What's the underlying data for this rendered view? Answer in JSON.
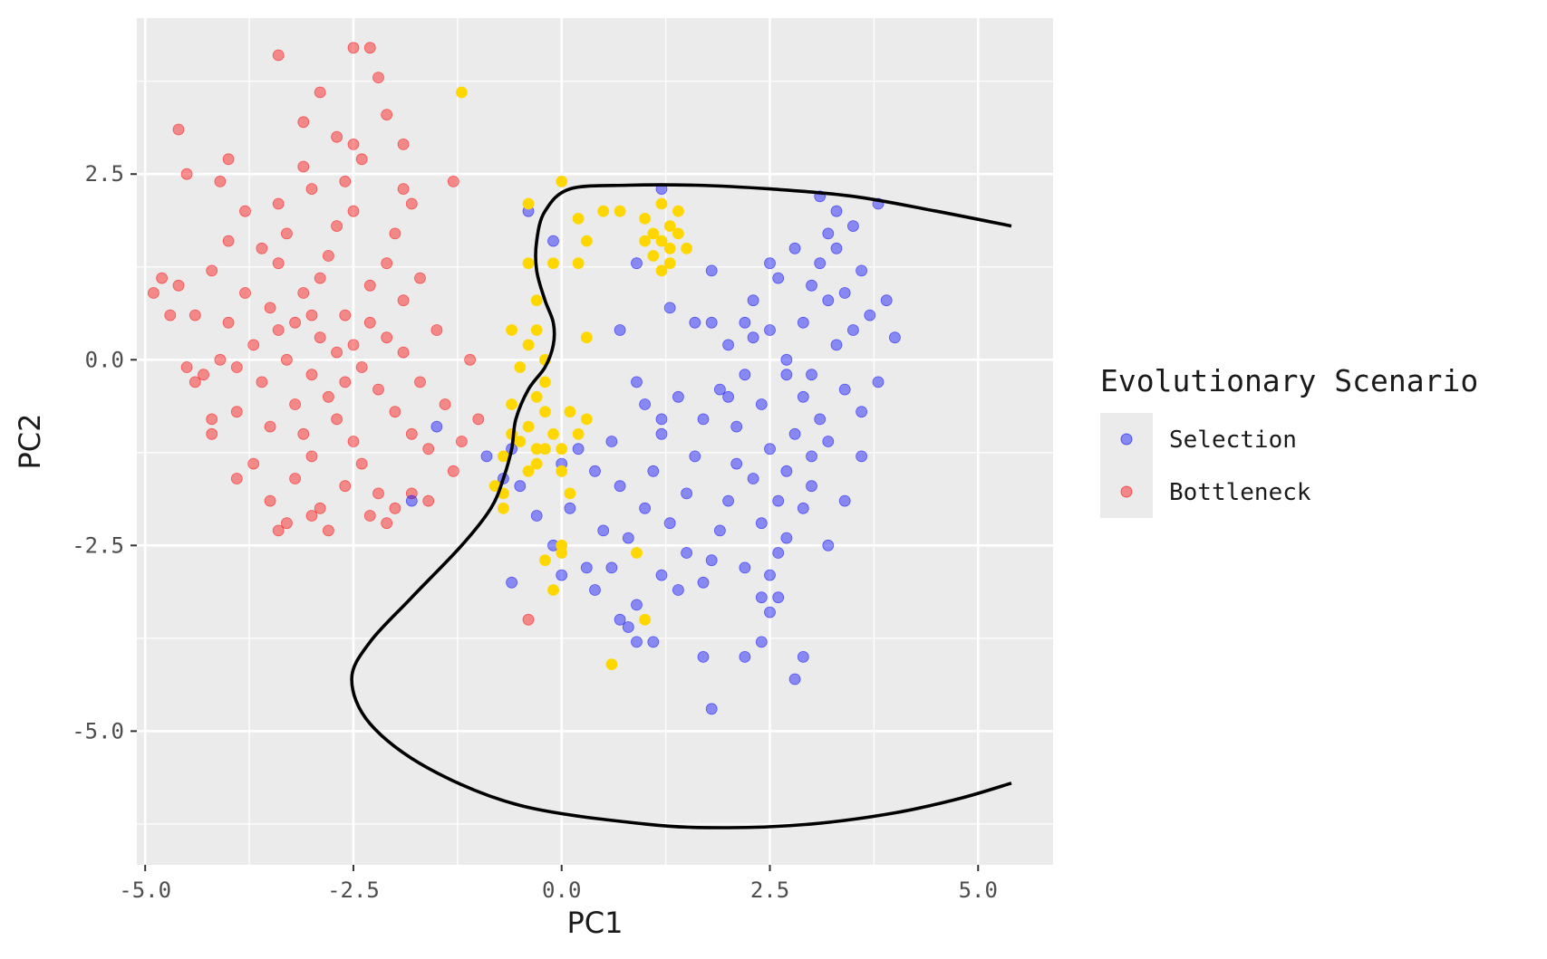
{
  "chart_data": {
    "type": "scatter",
    "xlabel": "PC1",
    "ylabel": "PC2",
    "xlim": [
      -5.1,
      5.9
    ],
    "ylim": [
      -6.8,
      4.6
    ],
    "x_ticks": [
      -5.0,
      -2.5,
      0.0,
      2.5,
      5.0
    ],
    "x_tick_labels": [
      "-5.0",
      "-2.5",
      "0.0",
      "2.5",
      "5.0"
    ],
    "y_ticks": [
      -5.0,
      -2.5,
      0.0,
      2.5
    ],
    "y_tick_labels": [
      "-5.0",
      "-2.5",
      "0.0",
      "2.5"
    ],
    "grid": true,
    "legend_position": "right",
    "legend": {
      "title": "Evolutionary Scenario",
      "entries": [
        {
          "label": "Selection",
          "color": "#0000ff"
        },
        {
          "label": "Bottleneck",
          "color": "#ff0000"
        }
      ]
    },
    "colors": {
      "panel_background": "#ebebeb",
      "grid": "#ffffff",
      "selection": "#0000ff",
      "bottleneck": "#ff0000",
      "unlabeled": "#ffd700",
      "boundary": "#000000"
    },
    "series": [
      {
        "color": "#ff0000",
        "points": [
          [
            -2.9,
            0.3
          ],
          [
            -3.2,
            0.5
          ],
          [
            -2.7,
            0.1
          ],
          [
            -3.0,
            -0.2
          ],
          [
            -3.4,
            0.4
          ],
          [
            -2.6,
            0.6
          ],
          [
            -3.1,
            0.9
          ],
          [
            -2.8,
            -0.5
          ],
          [
            -3.3,
            0.0
          ],
          [
            -2.5,
            0.2
          ],
          [
            -3.5,
            0.7
          ],
          [
            -2.9,
            1.1
          ],
          [
            -3.6,
            -0.3
          ],
          [
            -2.4,
            -0.1
          ],
          [
            -3.0,
            0.6
          ],
          [
            -2.7,
            -0.8
          ],
          [
            -3.2,
            -0.6
          ],
          [
            -2.3,
            0.5
          ],
          [
            -3.7,
            0.2
          ],
          [
            -2.6,
            -0.3
          ],
          [
            -3.8,
            0.9
          ],
          [
            -2.2,
            -0.4
          ],
          [
            -3.9,
            -0.1
          ],
          [
            -2.1,
            0.3
          ],
          [
            -3.4,
            1.3
          ],
          [
            -2.8,
            1.4
          ],
          [
            -3.1,
            -1.0
          ],
          [
            -2.5,
            -1.1
          ],
          [
            -4.0,
            0.5
          ],
          [
            -2.0,
            -0.7
          ],
          [
            -3.5,
            -0.9
          ],
          [
            -2.3,
            1.0
          ],
          [
            -3.3,
            1.7
          ],
          [
            -2.7,
            1.8
          ],
          [
            -4.1,
            0.0
          ],
          [
            -1.9,
            0.1
          ],
          [
            -3.0,
            -1.3
          ],
          [
            -2.4,
            -1.4
          ],
          [
            -3.6,
            1.5
          ],
          [
            -2.1,
            1.3
          ],
          [
            -4.2,
            1.2
          ],
          [
            -1.8,
            -1.0
          ],
          [
            -3.2,
            -1.6
          ],
          [
            -2.6,
            -1.7
          ],
          [
            -3.9,
            -0.7
          ],
          [
            -1.9,
            0.8
          ],
          [
            -4.3,
            -0.2
          ],
          [
            -1.7,
            -0.3
          ],
          [
            -3.4,
            2.1
          ],
          [
            -2.5,
            2.0
          ],
          [
            -4.0,
            1.6
          ],
          [
            -2.2,
            -1.8
          ],
          [
            -3.7,
            -1.4
          ],
          [
            -1.6,
            -1.2
          ],
          [
            -4.4,
            0.6
          ],
          [
            -1.5,
            0.4
          ],
          [
            -3.0,
            2.3
          ],
          [
            -2.9,
            -2.0
          ],
          [
            -4.5,
            -0.1
          ],
          [
            -1.4,
            -0.6
          ],
          [
            -3.8,
            2.0
          ],
          [
            -2.0,
            1.7
          ],
          [
            -4.2,
            -1.0
          ],
          [
            -1.7,
            1.1
          ],
          [
            -3.5,
            -1.9
          ],
          [
            -2.3,
            -2.1
          ],
          [
            -4.6,
            1.0
          ],
          [
            -1.3,
            -1.5
          ],
          [
            -4.7,
            0.6
          ],
          [
            -1.6,
            -1.9
          ],
          [
            -3.1,
            2.6
          ],
          [
            -2.6,
            2.4
          ],
          [
            -3.9,
            -1.6
          ],
          [
            -2.1,
            -2.2
          ],
          [
            -4.1,
            2.4
          ],
          [
            -1.8,
            2.1
          ],
          [
            -4.8,
            1.1
          ],
          [
            -1.2,
            -1.1
          ],
          [
            -3.3,
            -2.2
          ],
          [
            -2.4,
            2.7
          ],
          [
            -4.0,
            2.7
          ],
          [
            -1.9,
            2.3
          ],
          [
            -4.9,
            0.9
          ],
          [
            -1.1,
            0.0
          ],
          [
            -2.9,
            3.6
          ],
          [
            -2.5,
            4.2
          ],
          [
            -2.3,
            4.2
          ],
          [
            -3.4,
            4.1
          ],
          [
            -2.2,
            3.8
          ],
          [
            -3.1,
            3.2
          ],
          [
            -2.1,
            3.3
          ],
          [
            -4.6,
            3.1
          ],
          [
            -2.7,
            3.0
          ],
          [
            -2.5,
            2.9
          ],
          [
            -1.9,
            2.9
          ],
          [
            -1.3,
            2.4
          ],
          [
            -4.5,
            2.5
          ],
          [
            -2.8,
            -2.3
          ],
          [
            -3.0,
            -2.1
          ],
          [
            -3.4,
            -2.3
          ],
          [
            -2.0,
            -2.0
          ],
          [
            -1.8,
            -1.8
          ],
          [
            -4.2,
            -0.8
          ],
          [
            -4.4,
            -0.3
          ],
          [
            -0.4,
            -3.5
          ],
          [
            -1.0,
            -0.8
          ]
        ]
      },
      {
        "color": "#0000ff",
        "points": [
          [
            3.0,
            1.0
          ],
          [
            3.2,
            0.8
          ],
          [
            2.9,
            0.5
          ],
          [
            3.1,
            1.3
          ],
          [
            3.3,
            0.2
          ],
          [
            2.8,
            1.5
          ],
          [
            3.0,
            -0.2
          ],
          [
            3.4,
            0.9
          ],
          [
            2.7,
            0.0
          ],
          [
            3.2,
            1.7
          ],
          [
            2.9,
            -0.5
          ],
          [
            3.5,
            0.4
          ],
          [
            2.6,
            1.1
          ],
          [
            3.1,
            -0.8
          ],
          [
            3.3,
            1.5
          ],
          [
            2.8,
            -1.0
          ],
          [
            3.6,
            1.2
          ],
          [
            2.5,
            0.4
          ],
          [
            3.0,
            -1.3
          ],
          [
            3.4,
            -0.4
          ],
          [
            2.7,
            -1.5
          ],
          [
            3.5,
            1.8
          ],
          [
            2.4,
            -0.6
          ],
          [
            3.2,
            -1.1
          ],
          [
            2.6,
            -1.9
          ],
          [
            3.7,
            0.6
          ],
          [
            2.3,
            0.8
          ],
          [
            3.0,
            -1.7
          ],
          [
            2.5,
            -1.2
          ],
          [
            3.3,
            2.0
          ],
          [
            2.2,
            -0.2
          ],
          [
            2.9,
            -2.0
          ],
          [
            2.4,
            -2.2
          ],
          [
            3.1,
            2.2
          ],
          [
            2.1,
            -0.9
          ],
          [
            2.7,
            -2.4
          ],
          [
            2.0,
            0.2
          ],
          [
            3.6,
            -0.7
          ],
          [
            2.3,
            -1.6
          ],
          [
            1.9,
            -0.4
          ],
          [
            2.6,
            -2.6
          ],
          [
            2.1,
            -1.4
          ],
          [
            1.8,
            0.5
          ],
          [
            2.5,
            -2.9
          ],
          [
            2.0,
            -1.9
          ],
          [
            1.7,
            -0.8
          ],
          [
            2.4,
            -3.2
          ],
          [
            1.9,
            -2.3
          ],
          [
            1.6,
            -1.3
          ],
          [
            2.2,
            -2.8
          ],
          [
            1.8,
            -2.7
          ],
          [
            1.5,
            -1.8
          ],
          [
            1.4,
            -0.5
          ],
          [
            1.3,
            -2.2
          ],
          [
            1.7,
            -3.0
          ],
          [
            1.2,
            -1.0
          ],
          [
            1.5,
            -2.6
          ],
          [
            1.1,
            -1.5
          ],
          [
            1.0,
            -2.0
          ],
          [
            1.4,
            -3.1
          ],
          [
            0.9,
            -0.3
          ],
          [
            0.8,
            -2.4
          ],
          [
            1.2,
            -2.9
          ],
          [
            0.7,
            -1.7
          ],
          [
            0.9,
            -3.3
          ],
          [
            0.6,
            -1.1
          ],
          [
            0.5,
            -2.3
          ],
          [
            0.4,
            -1.5
          ],
          [
            0.7,
            -3.5
          ],
          [
            0.3,
            -2.8
          ],
          [
            0.2,
            -1.2
          ],
          [
            0.1,
            -2.0
          ],
          [
            0.0,
            -1.4
          ],
          [
            -0.1,
            -2.5
          ],
          [
            0.0,
            -2.9
          ],
          [
            -0.3,
            -2.1
          ],
          [
            -0.5,
            -1.7
          ],
          [
            -0.6,
            -1.2
          ],
          [
            -0.7,
            -1.6
          ],
          [
            -0.9,
            -1.3
          ],
          [
            -0.6,
            -3.0
          ],
          [
            0.9,
            -3.8
          ],
          [
            1.1,
            -3.8
          ],
          [
            1.7,
            -4.0
          ],
          [
            2.2,
            -4.0
          ],
          [
            2.4,
            -3.8
          ],
          [
            2.9,
            -4.0
          ],
          [
            2.8,
            -4.3
          ],
          [
            1.8,
            -4.7
          ],
          [
            2.6,
            -3.2
          ],
          [
            2.5,
            -3.4
          ],
          [
            0.6,
            -2.8
          ],
          [
            0.4,
            -3.1
          ],
          [
            0.8,
            -3.6
          ],
          [
            1.0,
            -0.6
          ],
          [
            1.2,
            -0.8
          ],
          [
            1.2,
            2.3
          ],
          [
            -0.4,
            2.0
          ],
          [
            -0.1,
            1.6
          ],
          [
            1.8,
            1.2
          ],
          [
            2.2,
            0.5
          ],
          [
            0.7,
            0.4
          ],
          [
            1.3,
            0.7
          ],
          [
            0.9,
            1.3
          ],
          [
            2.5,
            1.3
          ],
          [
            3.8,
            2.1
          ],
          [
            3.9,
            0.8
          ],
          [
            4.0,
            0.3
          ],
          [
            3.8,
            -0.3
          ],
          [
            3.6,
            -1.3
          ],
          [
            3.2,
            -2.5
          ],
          [
            2.3,
            0.3
          ],
          [
            1.6,
            0.5
          ],
          [
            2.0,
            -0.5
          ],
          [
            3.4,
            -1.9
          ],
          [
            2.7,
            -0.2
          ],
          [
            -1.5,
            -0.9
          ],
          [
            -1.8,
            -1.9
          ]
        ]
      },
      {
        "color": "#ffd700",
        "points": [
          [
            1.2,
            1.6
          ],
          [
            1.3,
            1.8
          ],
          [
            1.1,
            1.4
          ],
          [
            1.4,
            1.7
          ],
          [
            1.0,
            1.9
          ],
          [
            1.3,
            1.3
          ],
          [
            1.2,
            2.1
          ],
          [
            1.5,
            1.5
          ],
          [
            1.1,
            1.7
          ],
          [
            1.4,
            2.0
          ],
          [
            1.2,
            1.2
          ],
          [
            1.3,
            1.5
          ],
          [
            1.0,
            1.6
          ],
          [
            -1.2,
            3.6
          ],
          [
            0.0,
            2.4
          ],
          [
            -0.4,
            2.1
          ],
          [
            0.3,
            1.6
          ],
          [
            0.5,
            2.0
          ],
          [
            0.7,
            2.0
          ],
          [
            0.2,
            1.9
          ],
          [
            0.2,
            1.3
          ],
          [
            -0.1,
            1.3
          ],
          [
            -0.4,
            1.3
          ],
          [
            -0.3,
            0.8
          ],
          [
            -0.3,
            0.4
          ],
          [
            -0.6,
            0.4
          ],
          [
            0.3,
            0.3
          ],
          [
            -0.4,
            0.2
          ],
          [
            -0.2,
            0.0
          ],
          [
            -0.5,
            -0.1
          ],
          [
            -0.2,
            -0.3
          ],
          [
            -0.3,
            -0.5
          ],
          [
            -0.6,
            -0.6
          ],
          [
            -0.2,
            -0.7
          ],
          [
            0.1,
            -0.7
          ],
          [
            0.3,
            -0.8
          ],
          [
            -0.4,
            -0.9
          ],
          [
            -0.1,
            -1.0
          ],
          [
            -0.5,
            -1.1
          ],
          [
            -0.2,
            -1.2
          ],
          [
            -0.7,
            -1.3
          ],
          [
            0.0,
            -1.5
          ],
          [
            -0.3,
            -1.4
          ],
          [
            -0.4,
            -1.5
          ],
          [
            -0.7,
            -1.8
          ],
          [
            -0.7,
            -2.0
          ],
          [
            -0.8,
            -1.7
          ],
          [
            0.0,
            -2.5
          ],
          [
            0.0,
            -2.6
          ],
          [
            0.9,
            -2.6
          ],
          [
            -0.2,
            -2.7
          ],
          [
            -0.1,
            -3.1
          ],
          [
            1.0,
            -3.5
          ],
          [
            0.6,
            -4.1
          ],
          [
            0.0,
            -1.2
          ],
          [
            0.2,
            -1.0
          ],
          [
            -0.3,
            -1.2
          ],
          [
            -0.6,
            -1.0
          ],
          [
            0.1,
            -1.8
          ]
        ]
      }
    ],
    "boundary_curve": [
      [
        5.4,
        1.8
      ],
      [
        4.5,
        2.0
      ],
      [
        3.5,
        2.2
      ],
      [
        2.5,
        2.3
      ],
      [
        1.6,
        2.35
      ],
      [
        0.8,
        2.35
      ],
      [
        0.1,
        2.3
      ],
      [
        -0.2,
        2.0
      ],
      [
        -0.3,
        1.6
      ],
      [
        -0.3,
        1.2
      ],
      [
        -0.2,
        0.8
      ],
      [
        -0.1,
        0.5
      ],
      [
        -0.1,
        0.2
      ],
      [
        -0.2,
        -0.1
      ],
      [
        -0.4,
        -0.4
      ],
      [
        -0.55,
        -0.8
      ],
      [
        -0.6,
        -1.2
      ],
      [
        -0.7,
        -1.6
      ],
      [
        -0.85,
        -2.0
      ],
      [
        -1.2,
        -2.5
      ],
      [
        -1.8,
        -3.2
      ],
      [
        -2.3,
        -3.8
      ],
      [
        -2.52,
        -4.3
      ],
      [
        -2.3,
        -4.9
      ],
      [
        -1.6,
        -5.5
      ],
      [
        -0.5,
        -6.0
      ],
      [
        1.0,
        -6.25
      ],
      [
        2.0,
        -6.3
      ],
      [
        3.0,
        -6.25
      ],
      [
        4.0,
        -6.1
      ],
      [
        4.8,
        -5.9
      ],
      [
        5.4,
        -5.7
      ]
    ]
  }
}
